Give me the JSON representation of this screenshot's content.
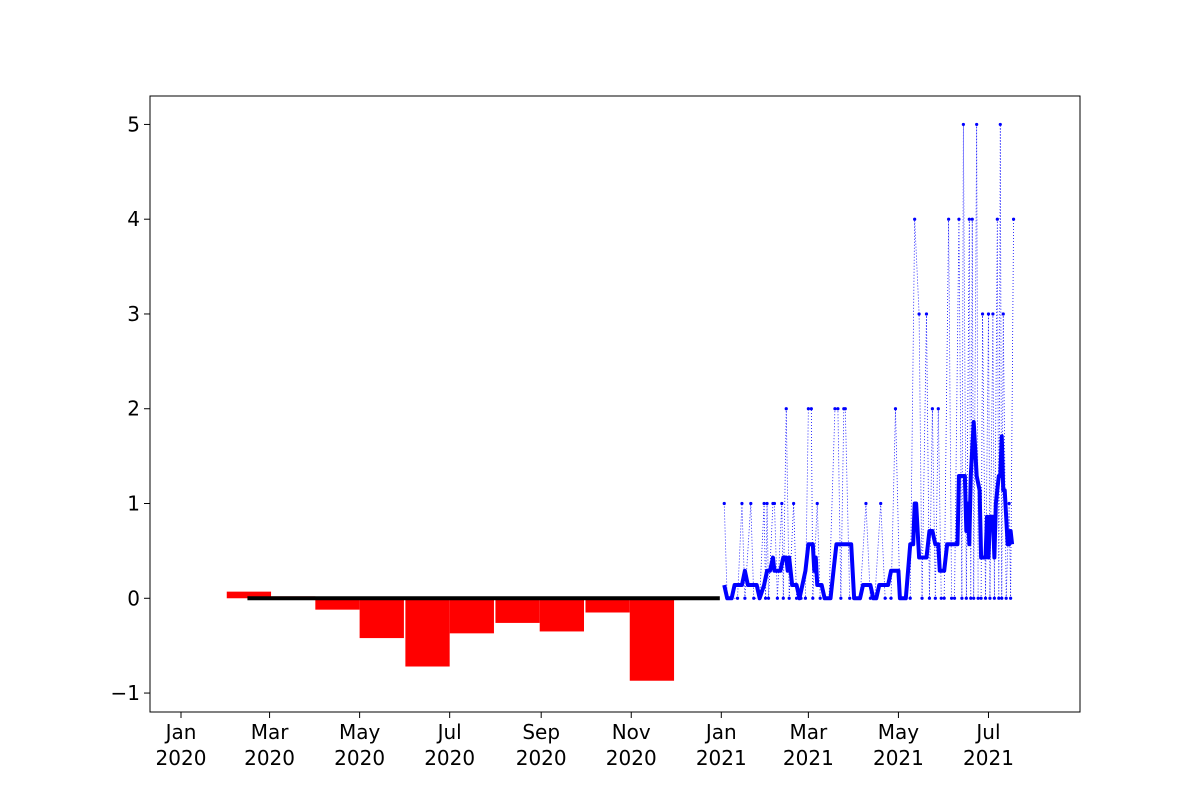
{
  "chart_data": {
    "type": "bar+line",
    "title": "",
    "xlabel": "",
    "ylabel": "",
    "ylim": [
      -1.2,
      5.3
    ],
    "xlim": [
      "2019-12-11",
      "2021-09-01"
    ],
    "grid": false,
    "yticks": [
      {
        "value": -1,
        "label": "−1"
      },
      {
        "value": 0,
        "label": "0"
      },
      {
        "value": 1,
        "label": "1"
      },
      {
        "value": 2,
        "label": "2"
      },
      {
        "value": 3,
        "label": "3"
      },
      {
        "value": 4,
        "label": "4"
      },
      {
        "value": 5,
        "label": "5"
      }
    ],
    "xticks": [
      {
        "date": "2020-01-01",
        "month": "Jan",
        "year": "2020"
      },
      {
        "date": "2020-03-01",
        "month": "Mar",
        "year": "2020"
      },
      {
        "date": "2020-05-01",
        "month": "May",
        "year": "2020"
      },
      {
        "date": "2020-07-01",
        "month": "Jul",
        "year": "2020"
      },
      {
        "date": "2020-09-01",
        "month": "Sep",
        "year": "2020"
      },
      {
        "date": "2020-11-01",
        "month": "Nov",
        "year": "2020"
      },
      {
        "date": "2021-01-01",
        "month": "Jan",
        "year": "2021"
      },
      {
        "date": "2021-03-01",
        "month": "Mar",
        "year": "2021"
      },
      {
        "date": "2021-05-01",
        "month": "May",
        "year": "2021"
      },
      {
        "date": "2021-07-01",
        "month": "Jul",
        "year": "2021"
      }
    ],
    "bars": {
      "color": "#ff0000",
      "width_days": 30,
      "points": [
        {
          "start": "2020-02-01",
          "value": 0.07
        },
        {
          "start": "2020-03-02",
          "value": 0.02
        },
        {
          "start": "2020-04-01",
          "value": -0.12
        },
        {
          "start": "2020-05-01",
          "value": -0.42
        },
        {
          "start": "2020-06-01",
          "value": -0.72
        },
        {
          "start": "2020-07-01",
          "value": -0.37
        },
        {
          "start": "2020-08-01",
          "value": -0.26
        },
        {
          "start": "2020-08-31",
          "value": -0.35
        },
        {
          "start": "2020-10-01",
          "value": -0.15
        },
        {
          "start": "2020-10-31",
          "value": -0.87
        }
      ]
    },
    "baseline": {
      "color": "#000000",
      "from": "2020-02-15",
      "to": "2020-12-31",
      "value": 0
    },
    "series": [
      {
        "style": "dotted",
        "color": "#0000ff",
        "points": [
          {
            "x": "2021-01-03",
            "y": 1
          },
          {
            "x": "2021-01-05",
            "y": 0
          },
          {
            "x": "2021-01-08",
            "y": 0
          },
          {
            "x": "2021-01-12",
            "y": 0
          },
          {
            "x": "2021-01-15",
            "y": 1
          },
          {
            "x": "2021-01-17",
            "y": 0
          },
          {
            "x": "2021-01-21",
            "y": 1
          },
          {
            "x": "2021-01-23",
            "y": 0
          },
          {
            "x": "2021-01-27",
            "y": 0
          },
          {
            "x": "2021-01-30",
            "y": 1
          },
          {
            "x": "2021-01-31",
            "y": 0
          },
          {
            "x": "2021-02-01",
            "y": 1
          },
          {
            "x": "2021-02-02",
            "y": 0
          },
          {
            "x": "2021-02-05",
            "y": 1
          },
          {
            "x": "2021-02-06",
            "y": 1
          },
          {
            "x": "2021-02-08",
            "y": 0
          },
          {
            "x": "2021-02-11",
            "y": 1
          },
          {
            "x": "2021-02-12",
            "y": 0
          },
          {
            "x": "2021-02-14",
            "y": 2
          },
          {
            "x": "2021-02-16",
            "y": 0
          },
          {
            "x": "2021-02-19",
            "y": 1
          },
          {
            "x": "2021-02-21",
            "y": 0
          },
          {
            "x": "2021-02-24",
            "y": 0
          },
          {
            "x": "2021-02-27",
            "y": 0
          },
          {
            "x": "2021-03-01",
            "y": 2
          },
          {
            "x": "2021-03-03",
            "y": 2
          },
          {
            "x": "2021-03-04",
            "y": 0
          },
          {
            "x": "2021-03-07",
            "y": 1
          },
          {
            "x": "2021-03-09",
            "y": 0
          },
          {
            "x": "2021-03-12",
            "y": 0
          },
          {
            "x": "2021-03-15",
            "y": 0
          },
          {
            "x": "2021-03-19",
            "y": 2
          },
          {
            "x": "2021-03-21",
            "y": 2
          },
          {
            "x": "2021-03-23",
            "y": 0
          },
          {
            "x": "2021-03-25",
            "y": 2
          },
          {
            "x": "2021-03-26",
            "y": 2
          },
          {
            "x": "2021-03-29",
            "y": 0
          },
          {
            "x": "2021-04-01",
            "y": 0
          },
          {
            "x": "2021-04-05",
            "y": 0
          },
          {
            "x": "2021-04-09",
            "y": 1
          },
          {
            "x": "2021-04-12",
            "y": 0
          },
          {
            "x": "2021-04-15",
            "y": 0
          },
          {
            "x": "2021-04-19",
            "y": 1
          },
          {
            "x": "2021-04-22",
            "y": 0
          },
          {
            "x": "2021-04-26",
            "y": 0
          },
          {
            "x": "2021-04-29",
            "y": 2
          },
          {
            "x": "2021-05-02",
            "y": 0
          },
          {
            "x": "2021-05-06",
            "y": 0
          },
          {
            "x": "2021-05-09",
            "y": 0
          },
          {
            "x": "2021-05-12",
            "y": 4
          },
          {
            "x": "2021-05-15",
            "y": 3
          },
          {
            "x": "2021-05-17",
            "y": 0
          },
          {
            "x": "2021-05-20",
            "y": 3
          },
          {
            "x": "2021-05-22",
            "y": 0
          },
          {
            "x": "2021-05-24",
            "y": 2
          },
          {
            "x": "2021-05-26",
            "y": 0
          },
          {
            "x": "2021-05-28",
            "y": 2
          },
          {
            "x": "2021-05-30",
            "y": 0
          },
          {
            "x": "2021-06-01",
            "y": 0
          },
          {
            "x": "2021-06-04",
            "y": 4
          },
          {
            "x": "2021-06-06",
            "y": 0
          },
          {
            "x": "2021-06-08",
            "y": 0
          },
          {
            "x": "2021-06-11",
            "y": 4
          },
          {
            "x": "2021-06-13",
            "y": 0
          },
          {
            "x": "2021-06-14",
            "y": 5
          },
          {
            "x": "2021-06-16",
            "y": 0
          },
          {
            "x": "2021-06-18",
            "y": 4
          },
          {
            "x": "2021-06-19",
            "y": 0
          },
          {
            "x": "2021-06-20",
            "y": 4
          },
          {
            "x": "2021-06-21",
            "y": 0
          },
          {
            "x": "2021-06-23",
            "y": 5
          },
          {
            "x": "2021-06-24",
            "y": 0
          },
          {
            "x": "2021-06-26",
            "y": 0
          },
          {
            "x": "2021-06-27",
            "y": 3
          },
          {
            "x": "2021-06-29",
            "y": 0
          },
          {
            "x": "2021-07-01",
            "y": 3
          },
          {
            "x": "2021-07-02",
            "y": 0
          },
          {
            "x": "2021-07-04",
            "y": 3
          },
          {
            "x": "2021-07-05",
            "y": 0
          },
          {
            "x": "2021-07-07",
            "y": 4
          },
          {
            "x": "2021-07-08",
            "y": 0
          },
          {
            "x": "2021-07-09",
            "y": 5
          },
          {
            "x": "2021-07-10",
            "y": 0
          },
          {
            "x": "2021-07-11",
            "y": 3
          },
          {
            "x": "2021-07-13",
            "y": 0
          },
          {
            "x": "2021-07-15",
            "y": 1
          },
          {
            "x": "2021-07-16",
            "y": 0
          },
          {
            "x": "2021-07-18",
            "y": 4
          }
        ]
      },
      {
        "style": "solid",
        "color": "#0000ff",
        "points": [
          {
            "x": "2021-01-03",
            "y": 0.14
          },
          {
            "x": "2021-01-05",
            "y": 0.0
          },
          {
            "x": "2021-01-08",
            "y": 0.0
          },
          {
            "x": "2021-01-10",
            "y": 0.14
          },
          {
            "x": "2021-01-15",
            "y": 0.14
          },
          {
            "x": "2021-01-17",
            "y": 0.29
          },
          {
            "x": "2021-01-19",
            "y": 0.14
          },
          {
            "x": "2021-01-25",
            "y": 0.14
          },
          {
            "x": "2021-01-27",
            "y": 0.0
          },
          {
            "x": "2021-01-30",
            "y": 0.14
          },
          {
            "x": "2021-02-01",
            "y": 0.29
          },
          {
            "x": "2021-02-03",
            "y": 0.29
          },
          {
            "x": "2021-02-05",
            "y": 0.43
          },
          {
            "x": "2021-02-06",
            "y": 0.29
          },
          {
            "x": "2021-02-10",
            "y": 0.29
          },
          {
            "x": "2021-02-12",
            "y": 0.43
          },
          {
            "x": "2021-02-14",
            "y": 0.43
          },
          {
            "x": "2021-02-15",
            "y": 0.29
          },
          {
            "x": "2021-02-16",
            "y": 0.43
          },
          {
            "x": "2021-02-18",
            "y": 0.14
          },
          {
            "x": "2021-02-21",
            "y": 0.14
          },
          {
            "x": "2021-02-23",
            "y": 0.0
          },
          {
            "x": "2021-02-27",
            "y": 0.29
          },
          {
            "x": "2021-03-01",
            "y": 0.57
          },
          {
            "x": "2021-03-04",
            "y": 0.57
          },
          {
            "x": "2021-03-05",
            "y": 0.29
          },
          {
            "x": "2021-03-06",
            "y": 0.43
          },
          {
            "x": "2021-03-07",
            "y": 0.14
          },
          {
            "x": "2021-03-10",
            "y": 0.14
          },
          {
            "x": "2021-03-12",
            "y": 0.0
          },
          {
            "x": "2021-03-16",
            "y": 0.0
          },
          {
            "x": "2021-03-18",
            "y": 0.29
          },
          {
            "x": "2021-03-20",
            "y": 0.57
          },
          {
            "x": "2021-03-30",
            "y": 0.57
          },
          {
            "x": "2021-04-01",
            "y": 0.0
          },
          {
            "x": "2021-04-05",
            "y": 0.0
          },
          {
            "x": "2021-04-07",
            "y": 0.14
          },
          {
            "x": "2021-04-12",
            "y": 0.14
          },
          {
            "x": "2021-04-14",
            "y": 0.0
          },
          {
            "x": "2021-04-16",
            "y": 0.0
          },
          {
            "x": "2021-04-18",
            "y": 0.14
          },
          {
            "x": "2021-04-24",
            "y": 0.14
          },
          {
            "x": "2021-04-26",
            "y": 0.29
          },
          {
            "x": "2021-05-01",
            "y": 0.29
          },
          {
            "x": "2021-05-02",
            "y": 0.0
          },
          {
            "x": "2021-05-06",
            "y": 0.0
          },
          {
            "x": "2021-05-09",
            "y": 0.57
          },
          {
            "x": "2021-05-11",
            "y": 0.57
          },
          {
            "x": "2021-05-12",
            "y": 1.0
          },
          {
            "x": "2021-05-13",
            "y": 1.0
          },
          {
            "x": "2021-05-15",
            "y": 0.43
          },
          {
            "x": "2021-05-20",
            "y": 0.43
          },
          {
            "x": "2021-05-22",
            "y": 0.71
          },
          {
            "x": "2021-05-24",
            "y": 0.71
          },
          {
            "x": "2021-05-26",
            "y": 0.57
          },
          {
            "x": "2021-05-28",
            "y": 0.57
          },
          {
            "x": "2021-05-29",
            "y": 0.29
          },
          {
            "x": "2021-06-01",
            "y": 0.29
          },
          {
            "x": "2021-06-03",
            "y": 0.57
          },
          {
            "x": "2021-06-10",
            "y": 0.57
          },
          {
            "x": "2021-06-11",
            "y": 1.29
          },
          {
            "x": "2021-06-15",
            "y": 1.29
          },
          {
            "x": "2021-06-16",
            "y": 0.71
          },
          {
            "x": "2021-06-17",
            "y": 1.0
          },
          {
            "x": "2021-06-18",
            "y": 0.57
          },
          {
            "x": "2021-06-19",
            "y": 1.29
          },
          {
            "x": "2021-06-21",
            "y": 1.86
          },
          {
            "x": "2021-06-23",
            "y": 1.29
          },
          {
            "x": "2021-06-25",
            "y": 1.14
          },
          {
            "x": "2021-06-26",
            "y": 0.43
          },
          {
            "x": "2021-06-29",
            "y": 0.43
          },
          {
            "x": "2021-06-30",
            "y": 0.86
          },
          {
            "x": "2021-07-01",
            "y": 0.43
          },
          {
            "x": "2021-07-02",
            "y": 0.86
          },
          {
            "x": "2021-07-04",
            "y": 0.86
          },
          {
            "x": "2021-07-05",
            "y": 0.43
          },
          {
            "x": "2021-07-06",
            "y": 1.0
          },
          {
            "x": "2021-07-08",
            "y": 1.29
          },
          {
            "x": "2021-07-09",
            "y": 1.29
          },
          {
            "x": "2021-07-10",
            "y": 1.71
          },
          {
            "x": "2021-07-11",
            "y": 1.14
          },
          {
            "x": "2021-07-12",
            "y": 1.14
          },
          {
            "x": "2021-07-14",
            "y": 0.57
          },
          {
            "x": "2021-07-15",
            "y": 0.57
          },
          {
            "x": "2021-07-16",
            "y": 0.71
          },
          {
            "x": "2021-07-17",
            "y": 0.57
          }
        ]
      }
    ]
  }
}
